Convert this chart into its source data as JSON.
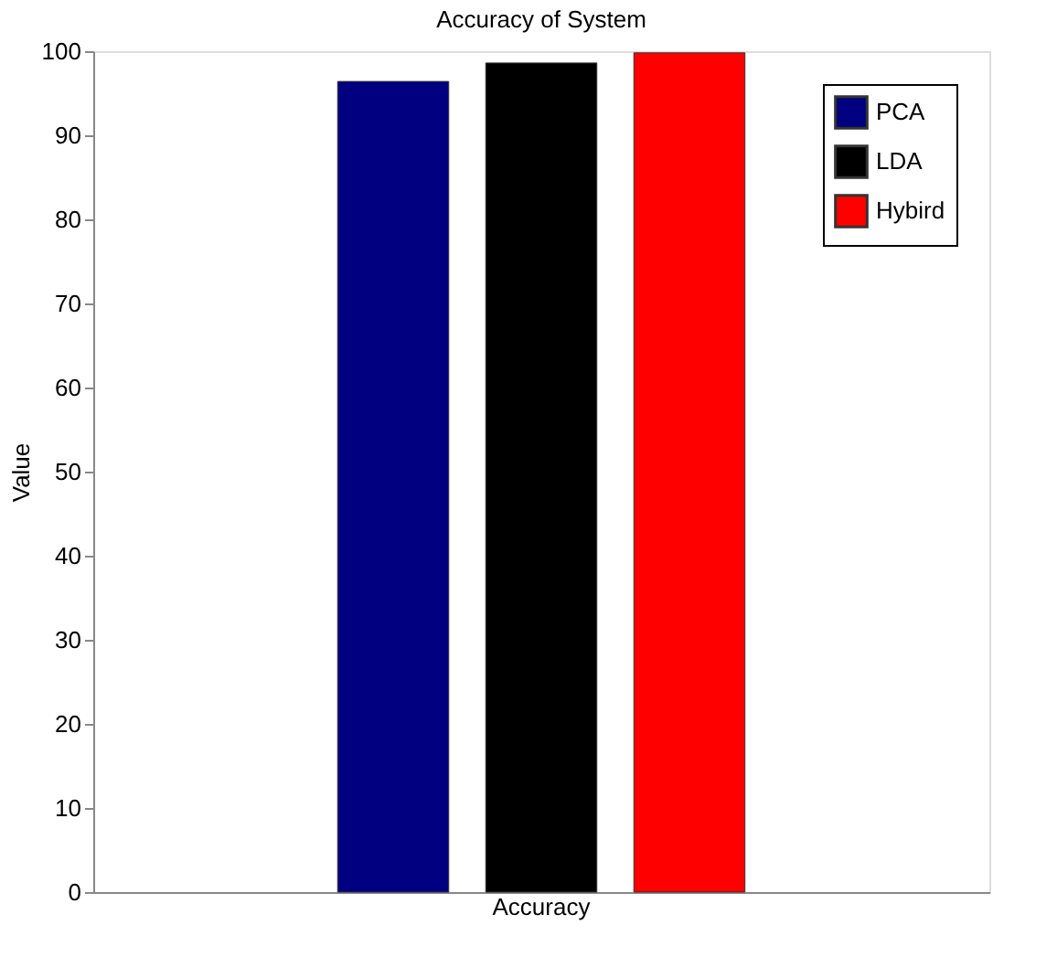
{
  "chart_data": {
    "type": "bar",
    "title": "Accuracy of System",
    "ylabel": "Value",
    "categories": [
      "Accuracy"
    ],
    "series": [
      {
        "name": "PCA",
        "color": "#000080",
        "values": [
          96.4
        ]
      },
      {
        "name": "LDA",
        "color": "#000000",
        "values": [
          98.6
        ]
      },
      {
        "name": "Hybird",
        "color": "#ff0000",
        "values": [
          99.8
        ]
      }
    ],
    "ylim": [
      0,
      100
    ],
    "yticks": [
      0,
      10,
      20,
      30,
      40,
      50,
      60,
      70,
      80,
      90,
      100
    ],
    "grid": false,
    "legend": "top right"
  }
}
